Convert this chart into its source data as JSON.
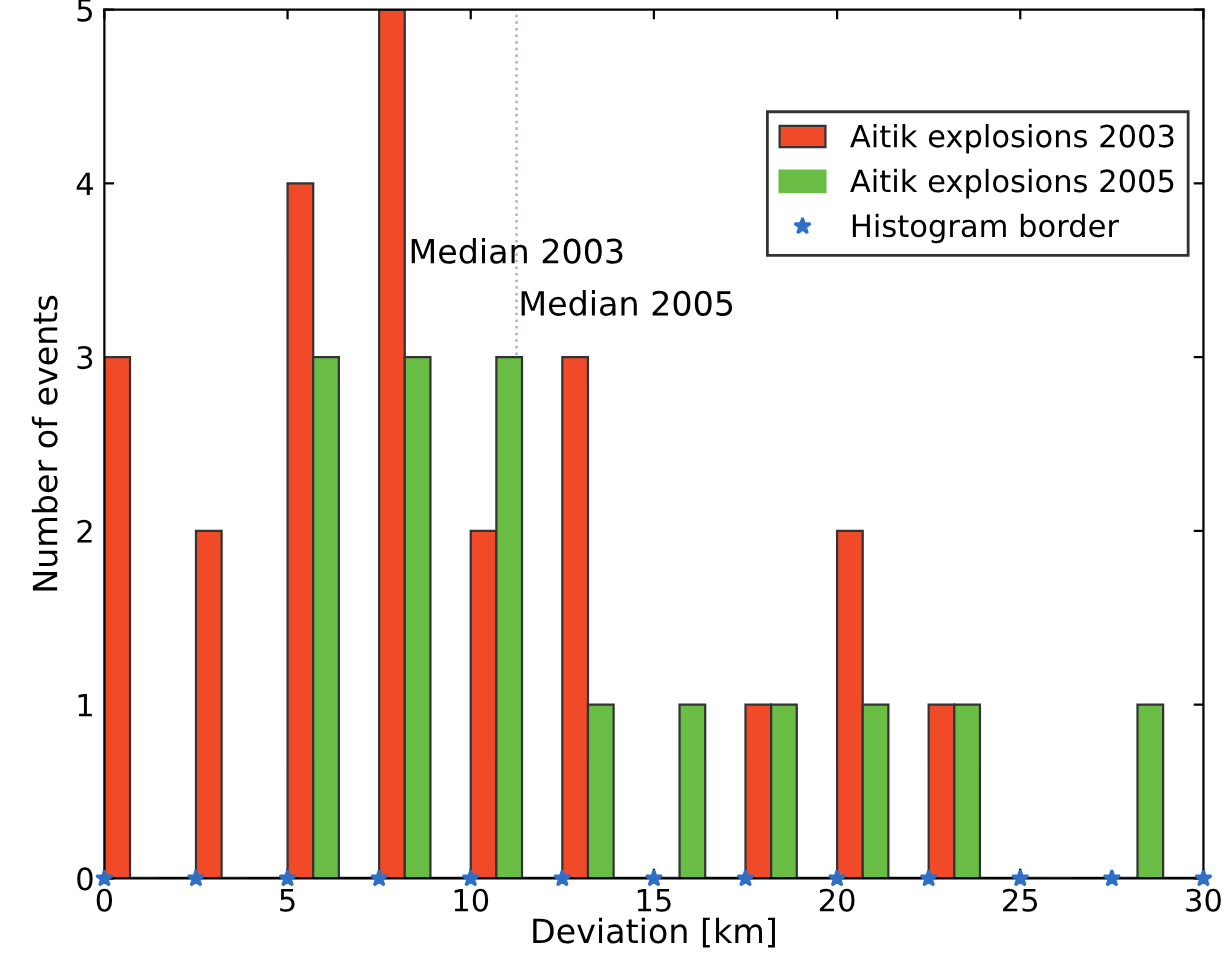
{
  "chart_data": {
    "type": "bar",
    "xlabel": "Deviation [km]",
    "ylabel": "Number of events",
    "xlim": [
      0,
      30
    ],
    "xticks": [
      0,
      5,
      10,
      15,
      20,
      25,
      30
    ],
    "ylim": [
      0,
      5
    ],
    "yticks": [
      0,
      1,
      2,
      3,
      4,
      5
    ],
    "grid": false,
    "legend": "top right",
    "series": [
      {
        "name": "Aitik explosions 2003",
        "color": "#f04a28",
        "x": [
          0.35,
          2.85,
          5.35,
          7.85,
          10.35,
          12.85,
          15.35,
          17.85,
          20.35,
          22.85,
          25.35,
          27.85
        ],
        "values": [
          3,
          2,
          4,
          5,
          2,
          3,
          0,
          1,
          2,
          1,
          0,
          0
        ]
      },
      {
        "name": "Aitik explosions 2005",
        "color": "#6abd45",
        "x": [
          1.05,
          3.55,
          6.05,
          8.55,
          11.05,
          13.55,
          16.05,
          18.55,
          21.05,
          23.55,
          26.05,
          28.55
        ],
        "values": [
          0,
          0,
          3,
          3,
          3,
          1,
          1,
          1,
          1,
          1,
          0,
          1
        ]
      },
      {
        "name": "Histogram border",
        "type": "scatter",
        "marker": "star",
        "color": "#2f6fc6",
        "x": [
          0,
          2.5,
          5,
          7.5,
          10,
          12.5,
          15,
          17.5,
          20,
          22.5,
          25,
          27.5,
          30
        ],
        "values": [
          0,
          0,
          0,
          0,
          0,
          0,
          0,
          0,
          0,
          0,
          0,
          0,
          0
        ]
      }
    ],
    "ref_lines": [
      {
        "axis": "x",
        "value": 11.25,
        "color": "#9ab4dc",
        "line_style": "dotted"
      }
    ],
    "annotations": [
      {
        "text": "Median 2003",
        "x": 8.3,
        "y": 3.5
      },
      {
        "text": "Median 2005",
        "x": 11.3,
        "y": 3.2
      }
    ]
  }
}
